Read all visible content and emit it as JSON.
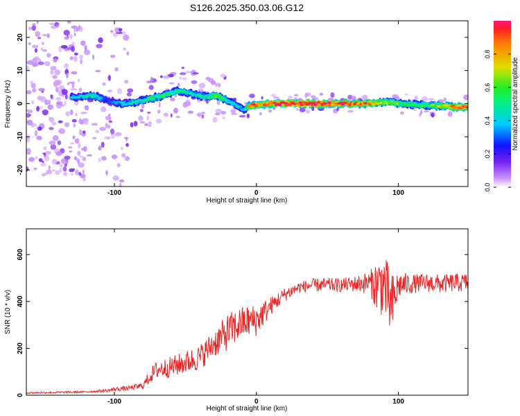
{
  "figure_title": "S126.2025.350.03.06.G12",
  "chart_data": [
    {
      "type": "heatmap",
      "title": "S126.2025.350.03.06.G12",
      "xlabel": "Height of straight line (km)",
      "ylabel": "Frequency (Hz)",
      "xlim": [
        -162,
        149
      ],
      "ylim": [
        -25,
        25
      ],
      "xticks": [
        -100,
        0,
        100
      ],
      "yticks": [
        -20,
        -10,
        0,
        10,
        20
      ],
      "colorbar": {
        "label": "Normalized spectral amplitude",
        "range": [
          0,
          1
        ],
        "ticks": [
          "0.0",
          "0.2",
          "0.4",
          "0.6",
          "0.8"
        ],
        "tick_values": [
          0.0,
          0.2,
          0.4,
          0.6,
          0.8
        ]
      },
      "ridge": {
        "height_km": [
          -125,
          -115,
          -105,
          -95,
          -85,
          -75,
          -65,
          -55,
          -45,
          -35,
          -28,
          -20,
          -12,
          -8,
          -5,
          0,
          10,
          20,
          40,
          60,
          80,
          90,
          100,
          120,
          140,
          149
        ],
        "frequency_hz": [
          2,
          2.5,
          1,
          0,
          0.5,
          1.5,
          2.5,
          4,
          3,
          2,
          2.5,
          1,
          -1,
          -2,
          -0.5,
          -0.5,
          0,
          0,
          0,
          0,
          0,
          0.5,
          0,
          -0.5,
          -1,
          -1
        ],
        "amplitude": [
          0.4,
          0.5,
          0.25,
          0.4,
          0.45,
          0.5,
          0.55,
          0.5,
          0.45,
          0.5,
          0.7,
          0.45,
          0.4,
          0.35,
          0.9,
          0.85,
          0.95,
          1.0,
          1.0,
          0.9,
          0.85,
          0.7,
          0.6,
          0.55,
          0.85,
          0.9
        ]
      }
    },
    {
      "type": "line",
      "xlabel": "Height of straight line (km)",
      "ylabel": "SNR (10 * v/v)",
      "xlim": [
        -162,
        149
      ],
      "ylim": [
        0,
        710
      ],
      "xticks": [
        -100,
        0,
        100
      ],
      "yticks": [
        0,
        200,
        400,
        600
      ],
      "series": [
        {
          "name": "SNR",
          "color": "#ee2222",
          "x": [
            -162,
            -140,
            -120,
            -105,
            -100,
            -90,
            -80,
            -75,
            -70,
            -60,
            -50,
            -40,
            -30,
            -20,
            -10,
            0,
            10,
            20,
            30,
            40,
            50,
            60,
            70,
            80,
            85,
            90,
            95,
            100,
            110,
            120,
            130,
            140,
            149
          ],
          "y": [
            10,
            12,
            14,
            20,
            25,
            30,
            40,
            80,
            110,
            120,
            140,
            160,
            220,
            270,
            310,
            320,
            380,
            430,
            460,
            470,
            470,
            470,
            475,
            480,
            470,
            470,
            370,
            470,
            475,
            480,
            475,
            480,
            480
          ],
          "noise": [
            4,
            4,
            4,
            6,
            10,
            10,
            15,
            30,
            40,
            45,
            50,
            55,
            60,
            80,
            70,
            70,
            40,
            30,
            25,
            28,
            30,
            30,
            35,
            50,
            120,
            140,
            150,
            60,
            40,
            40,
            40,
            40,
            40
          ]
        }
      ]
    }
  ]
}
